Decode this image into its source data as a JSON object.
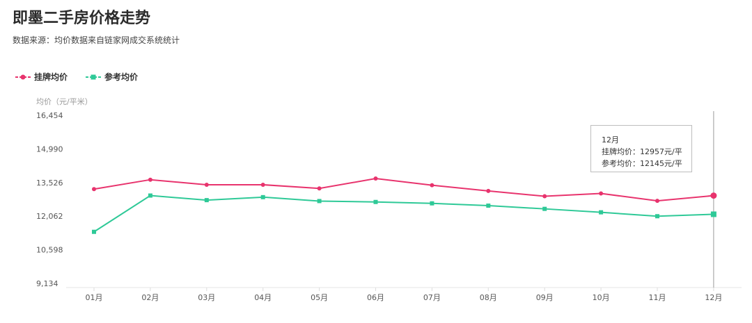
{
  "header": {
    "title": "即墨二手房价格走势",
    "subtitle": "数据来源：均价数据来自链家网成交系统统计"
  },
  "legend": [
    {
      "label": "挂牌均价",
      "color": "#e8336d",
      "marker": "circle"
    },
    {
      "label": "参考均价",
      "color": "#2ec997",
      "marker": "square"
    }
  ],
  "tooltip": {
    "month": "12月",
    "line1": "挂牌均价：12957元/平",
    "line2": "参考均价：12145元/平"
  },
  "chart_data": {
    "type": "line",
    "ylabel": "均价（元/平米）",
    "ylim": [
      9134,
      16454
    ],
    "yticks": [
      "16,454",
      "14,990",
      "13,526",
      "12,062",
      "10,598",
      "9,134"
    ],
    "ytick_values": [
      16454,
      14990,
      13526,
      12062,
      10598,
      9134
    ],
    "categories": [
      "01月",
      "02月",
      "03月",
      "04月",
      "05月",
      "06月",
      "07月",
      "08月",
      "09月",
      "10月",
      "11月",
      "12月"
    ],
    "series": [
      {
        "name": "挂牌均价",
        "color": "#e8336d",
        "marker": "circle",
        "values": [
          13240,
          13650,
          13430,
          13430,
          13270,
          13700,
          13410,
          13160,
          12930,
          13050,
          12730,
          12957
        ]
      },
      {
        "name": "参考均价",
        "color": "#2ec997",
        "marker": "square",
        "values": [
          11380,
          12960,
          12760,
          12890,
          12720,
          12680,
          12620,
          12520,
          12380,
          12230,
          12060,
          12145
        ]
      }
    ],
    "highlight_index": 11,
    "grid": false
  }
}
